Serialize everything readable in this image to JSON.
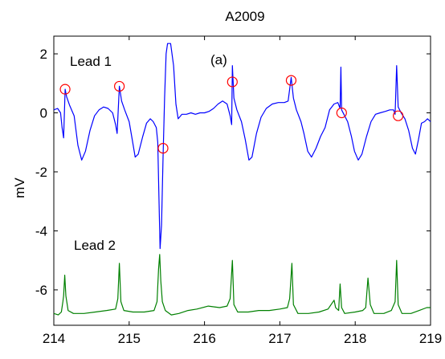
{
  "chart_data": {
    "type": "line",
    "title": "A2009",
    "xlabel": "",
    "ylabel": "mV",
    "xlim": [
      214,
      219
    ],
    "ylim": [
      -7.2,
      2.6
    ],
    "xticks": [
      214,
      215,
      216,
      217,
      218,
      219
    ],
    "yticks": [
      2,
      0,
      -2,
      -4,
      -6
    ],
    "grid": false,
    "legend": "none",
    "annotations": [
      "(a)",
      "Lead 1",
      "Lead 2"
    ],
    "series": [
      {
        "color": "#0000ff",
        "points": [
          [
            214.0,
            0.1
          ],
          [
            214.05,
            0.15
          ],
          [
            214.09,
            0.0
          ],
          [
            214.11,
            -0.5
          ],
          [
            214.13,
            -0.85
          ],
          [
            214.15,
            0.8
          ],
          [
            214.17,
            0.55
          ],
          [
            214.21,
            0.25
          ],
          [
            214.27,
            -0.1
          ],
          [
            214.32,
            -1.1
          ],
          [
            214.37,
            -1.6
          ],
          [
            214.42,
            -1.3
          ],
          [
            214.48,
            -0.6
          ],
          [
            214.54,
            -0.1
          ],
          [
            214.6,
            0.1
          ],
          [
            214.66,
            0.2
          ],
          [
            214.72,
            0.15
          ],
          [
            214.78,
            0.0
          ],
          [
            214.82,
            -0.4
          ],
          [
            214.84,
            -0.7
          ],
          [
            214.87,
            0.9
          ],
          [
            214.9,
            0.4
          ],
          [
            214.94,
            0.1
          ],
          [
            215.0,
            -0.3
          ],
          [
            215.04,
            -0.9
          ],
          [
            215.08,
            -1.5
          ],
          [
            215.12,
            -1.4
          ],
          [
            215.18,
            -0.8
          ],
          [
            215.23,
            -0.35
          ],
          [
            215.28,
            -0.2
          ],
          [
            215.32,
            -0.3
          ],
          [
            215.36,
            -0.5
          ],
          [
            215.38,
            -1.0
          ],
          [
            215.4,
            -3.4
          ],
          [
            215.41,
            -4.6
          ],
          [
            215.43,
            -3.8
          ],
          [
            215.45,
            -1.5
          ],
          [
            215.47,
            0.5
          ],
          [
            215.49,
            2.0
          ],
          [
            215.51,
            2.35
          ],
          [
            215.55,
            2.35
          ],
          [
            215.59,
            1.6
          ],
          [
            215.62,
            0.3
          ],
          [
            215.65,
            -0.2
          ],
          [
            215.7,
            -0.05
          ],
          [
            215.76,
            -0.05
          ],
          [
            215.82,
            0.0
          ],
          [
            215.88,
            -0.05
          ],
          [
            215.94,
            0.0
          ],
          [
            216.0,
            0.0
          ],
          [
            216.06,
            0.05
          ],
          [
            216.12,
            0.15
          ],
          [
            216.18,
            0.3
          ],
          [
            216.24,
            0.4
          ],
          [
            216.3,
            0.3
          ],
          [
            216.34,
            -0.1
          ],
          [
            216.36,
            -0.4
          ],
          [
            216.37,
            1.6
          ],
          [
            216.39,
            0.5
          ],
          [
            216.43,
            0.1
          ],
          [
            216.49,
            -0.3
          ],
          [
            216.54,
            -0.9
          ],
          [
            216.59,
            -1.6
          ],
          [
            216.63,
            -1.5
          ],
          [
            216.69,
            -0.7
          ],
          [
            216.75,
            -0.15
          ],
          [
            216.82,
            0.15
          ],
          [
            216.9,
            0.3
          ],
          [
            216.98,
            0.35
          ],
          [
            217.06,
            0.35
          ],
          [
            217.11,
            0.4
          ],
          [
            217.15,
            1.2
          ],
          [
            217.18,
            0.5
          ],
          [
            217.22,
            0.1
          ],
          [
            217.28,
            -0.3
          ],
          [
            217.32,
            -0.7
          ],
          [
            217.37,
            -1.3
          ],
          [
            217.42,
            -1.5
          ],
          [
            217.48,
            -1.2
          ],
          [
            217.54,
            -0.8
          ],
          [
            217.6,
            -0.5
          ],
          [
            217.66,
            0.1
          ],
          [
            217.72,
            0.3
          ],
          [
            217.77,
            0.35
          ],
          [
            217.8,
            0.15
          ],
          [
            217.81,
            1.55
          ],
          [
            217.82,
            0.1
          ],
          [
            217.85,
            -0.05
          ],
          [
            217.9,
            -0.3
          ],
          [
            217.95,
            -0.8
          ],
          [
            217.99,
            -1.3
          ],
          [
            218.04,
            -1.6
          ],
          [
            218.09,
            -1.4
          ],
          [
            218.15,
            -0.8
          ],
          [
            218.21,
            -0.3
          ],
          [
            218.27,
            -0.05
          ],
          [
            218.33,
            0.0
          ],
          [
            218.4,
            0.05
          ],
          [
            218.46,
            0.1
          ],
          [
            218.51,
            0.1
          ],
          [
            218.53,
            -0.05
          ],
          [
            218.55,
            1.6
          ],
          [
            218.57,
            0.2
          ],
          [
            218.61,
            0.0
          ],
          [
            218.66,
            -0.2
          ],
          [
            218.71,
            -0.6
          ],
          [
            218.76,
            -1.2
          ],
          [
            218.8,
            -1.4
          ],
          [
            218.84,
            -0.9
          ],
          [
            218.88,
            -0.35
          ],
          [
            218.92,
            -0.3
          ],
          [
            218.96,
            -0.2
          ],
          [
            219.0,
            -0.3
          ]
        ]
      },
      {
        "color": "#008000",
        "points": [
          [
            214.0,
            -6.8
          ],
          [
            214.06,
            -6.85
          ],
          [
            214.1,
            -6.75
          ],
          [
            214.12,
            -6.4
          ],
          [
            214.13,
            -6.2
          ],
          [
            214.145,
            -5.5
          ],
          [
            214.16,
            -6.2
          ],
          [
            214.19,
            -6.7
          ],
          [
            214.26,
            -6.8
          ],
          [
            214.4,
            -6.8
          ],
          [
            214.55,
            -6.75
          ],
          [
            214.7,
            -6.7
          ],
          [
            214.82,
            -6.65
          ],
          [
            214.85,
            -6.3
          ],
          [
            214.87,
            -5.1
          ],
          [
            214.89,
            -6.4
          ],
          [
            214.93,
            -6.7
          ],
          [
            215.05,
            -6.75
          ],
          [
            215.2,
            -6.75
          ],
          [
            215.33,
            -6.7
          ],
          [
            215.37,
            -6.4
          ],
          [
            215.39,
            -5.3
          ],
          [
            215.405,
            -4.8
          ],
          [
            215.42,
            -5.7
          ],
          [
            215.44,
            -6.4
          ],
          [
            215.48,
            -6.7
          ],
          [
            215.56,
            -6.85
          ],
          [
            215.66,
            -6.8
          ],
          [
            215.78,
            -6.7
          ],
          [
            215.9,
            -6.65
          ],
          [
            216.05,
            -6.55
          ],
          [
            216.2,
            -6.6
          ],
          [
            216.3,
            -6.55
          ],
          [
            216.34,
            -6.3
          ],
          [
            216.37,
            -5.0
          ],
          [
            216.39,
            -6.5
          ],
          [
            216.44,
            -6.75
          ],
          [
            216.58,
            -6.75
          ],
          [
            216.72,
            -6.7
          ],
          [
            216.86,
            -6.7
          ],
          [
            217.0,
            -6.65
          ],
          [
            217.1,
            -6.6
          ],
          [
            217.13,
            -6.3
          ],
          [
            217.16,
            -5.1
          ],
          [
            217.18,
            -6.5
          ],
          [
            217.24,
            -6.8
          ],
          [
            217.38,
            -6.8
          ],
          [
            217.52,
            -6.75
          ],
          [
            217.64,
            -6.65
          ],
          [
            217.72,
            -6.35
          ],
          [
            217.74,
            -6.6
          ],
          [
            217.78,
            -6.7
          ],
          [
            217.8,
            -5.8
          ],
          [
            217.82,
            -6.6
          ],
          [
            217.86,
            -6.8
          ],
          [
            218.0,
            -6.75
          ],
          [
            218.1,
            -6.7
          ],
          [
            218.14,
            -6.6
          ],
          [
            218.17,
            -5.6
          ],
          [
            218.2,
            -6.5
          ],
          [
            218.25,
            -6.8
          ],
          [
            218.38,
            -6.8
          ],
          [
            218.48,
            -6.7
          ],
          [
            218.53,
            -6.4
          ],
          [
            218.55,
            -5.0
          ],
          [
            218.57,
            -6.5
          ],
          [
            218.62,
            -6.8
          ],
          [
            218.74,
            -6.8
          ],
          [
            218.85,
            -6.7
          ],
          [
            218.95,
            -6.6
          ],
          [
            219.0,
            -6.6
          ]
        ]
      }
    ],
    "markers": {
      "color": "#ff0000",
      "shape": "circle",
      "points": [
        [
          214.15,
          0.8
        ],
        [
          214.87,
          0.9
        ],
        [
          215.45,
          -1.2
        ],
        [
          216.37,
          1.05
        ],
        [
          217.15,
          1.1
        ],
        [
          217.82,
          0.0
        ],
        [
          218.57,
          -0.1
        ]
      ]
    }
  }
}
